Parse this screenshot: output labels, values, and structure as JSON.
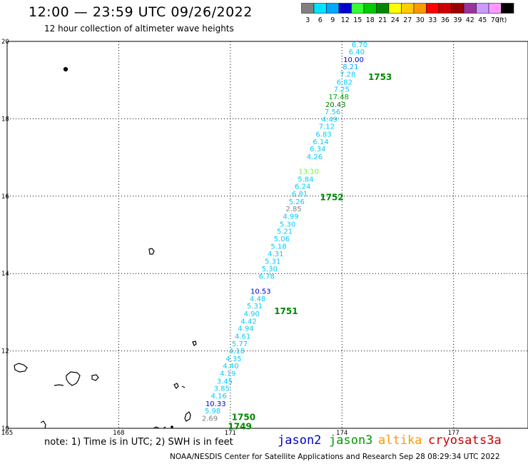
{
  "header": {
    "title": "12:00 — 23:59 UTC 09/26/2022",
    "subtitle": "12 hour collection of altimeter wave heights"
  },
  "colorbar": {
    "unit": "(ft)",
    "bins": [
      {
        "label": "3",
        "color": "#808080"
      },
      {
        "label": "6",
        "color": "#00e5ff"
      },
      {
        "label": "9",
        "color": "#00a8ff"
      },
      {
        "label": "12",
        "color": "#0000cc"
      },
      {
        "label": "15",
        "color": "#33ff33"
      },
      {
        "label": "18",
        "color": "#00cc00"
      },
      {
        "label": "21",
        "color": "#008800"
      },
      {
        "label": "24",
        "color": "#ffff00"
      },
      {
        "label": "27",
        "color": "#ffcc00"
      },
      {
        "label": "30",
        "color": "#ff9900"
      },
      {
        "label": "33",
        "color": "#ff0000"
      },
      {
        "label": "36",
        "color": "#cc0000"
      },
      {
        "label": "39",
        "color": "#990000"
      },
      {
        "label": "42",
        "color": "#993399"
      },
      {
        "label": "45",
        "color": "#cc99ff"
      },
      {
        "label": "70",
        "color": "#ff99ff"
      },
      {
        "label": "",
        "color": "#000000"
      }
    ]
  },
  "map": {
    "lon_range": [
      165,
      179
    ],
    "lat_range": [
      10,
      20
    ],
    "lon_ticks": [
      "165",
      "168",
      "171",
      "174",
      "177"
    ],
    "lat_ticks": [
      "10",
      "12",
      "14",
      "16",
      "18",
      "20"
    ],
    "lon_tick_values": [
      165,
      168,
      171,
      174,
      177
    ],
    "lat_tick_values": [
      10,
      12,
      14,
      16,
      18,
      20
    ],
    "grid_lon_values": [
      168,
      171,
      174,
      177
    ],
    "grid_lat_values": [
      12,
      14,
      16,
      18
    ],
    "track": {
      "satellite": "jason3",
      "times": [
        {
          "label": "1753",
          "lat": 19.1
        },
        {
          "label": "1752",
          "lat": 15.99
        },
        {
          "label": "1751",
          "lat": 13.04
        },
        {
          "label": "1750",
          "lat": 10.3
        },
        {
          "label": "1749",
          "lat": 10.06
        }
      ],
      "observations": [
        {
          "value": "6.70",
          "lat": 19.93,
          "color": "#00ccff"
        },
        {
          "value": "6.40",
          "lat": 19.74,
          "color": "#00ccff"
        },
        {
          "value": "10.00",
          "lat": 19.54,
          "color": "#0000cc"
        },
        {
          "value": "8.21",
          "lat": 19.35,
          "color": "#00a8ff"
        },
        {
          "value": "7.28",
          "lat": 19.16,
          "color": "#00ccff"
        },
        {
          "value": "6.82",
          "lat": 18.96,
          "color": "#00ccff"
        },
        {
          "value": "7.25",
          "lat": 18.77,
          "color": "#00ccff"
        },
        {
          "value": "17.48",
          "lat": 18.58,
          "color": "#00aa00"
        },
        {
          "value": "20.43",
          "lat": 18.38,
          "color": "#007700"
        },
        {
          "value": "7.56",
          "lat": 18.19,
          "color": "#00ccff"
        },
        {
          "value": "4.49",
          "lat": 18.0,
          "color": "#00ccff"
        },
        {
          "value": "7.12",
          "lat": 17.81,
          "color": "#00ccff"
        },
        {
          "value": "6.83",
          "lat": 17.61,
          "color": "#00ccff"
        },
        {
          "value": "6.14",
          "lat": 17.42,
          "color": "#00ccff"
        },
        {
          "value": "6.34",
          "lat": 17.23,
          "color": "#00ccff"
        },
        {
          "value": "4.26",
          "lat": 17.03,
          "color": "#00ccff"
        },
        {
          "value": "13.10",
          "lat": 16.65,
          "color": "#66ff33"
        },
        {
          "value": "5.84",
          "lat": 16.45,
          "color": "#00ccff"
        },
        {
          "value": "6.24",
          "lat": 16.26,
          "color": "#00ccff"
        },
        {
          "value": "6.81",
          "lat": 16.07,
          "color": "#00ccff"
        },
        {
          "value": "5.26",
          "lat": 15.87,
          "color": "#00ccff"
        },
        {
          "value": "2.85",
          "lat": 15.68,
          "color": "#808080"
        },
        {
          "value": "4.99",
          "lat": 15.49,
          "color": "#00ccff"
        },
        {
          "value": "5.30",
          "lat": 15.29,
          "color": "#00ccff"
        },
        {
          "value": "5.21",
          "lat": 15.1,
          "color": "#00ccff"
        },
        {
          "value": "5.06",
          "lat": 14.91,
          "color": "#00ccff"
        },
        {
          "value": "5.18",
          "lat": 14.71,
          "color": "#00ccff"
        },
        {
          "value": "4.31",
          "lat": 14.52,
          "color": "#00ccff"
        },
        {
          "value": "5.31",
          "lat": 14.33,
          "color": "#00ccff"
        },
        {
          "value": "5.30",
          "lat": 14.13,
          "color": "#00ccff"
        },
        {
          "value": "6.78",
          "lat": 13.94,
          "color": "#00ccff"
        },
        {
          "value": "10.53",
          "lat": 13.55,
          "color": "#0000cc"
        },
        {
          "value": "4.48",
          "lat": 13.36,
          "color": "#00ccff"
        },
        {
          "value": "5.31",
          "lat": 13.17,
          "color": "#00ccff"
        },
        {
          "value": "4.90",
          "lat": 12.97,
          "color": "#00ccff"
        },
        {
          "value": "4.42",
          "lat": 12.78,
          "color": "#00ccff"
        },
        {
          "value": "4.94",
          "lat": 12.59,
          "color": "#00ccff"
        },
        {
          "value": "4.61",
          "lat": 12.39,
          "color": "#00ccff"
        },
        {
          "value": "5.77",
          "lat": 12.2,
          "color": "#00ccff"
        },
        {
          "value": "4.18",
          "lat": 12.01,
          "color": "#00ccff"
        },
        {
          "value": "4.35",
          "lat": 11.81,
          "color": "#00ccff"
        },
        {
          "value": "4.40",
          "lat": 11.62,
          "color": "#00ccff"
        },
        {
          "value": "4.19",
          "lat": 11.43,
          "color": "#00ccff"
        },
        {
          "value": "3.45",
          "lat": 11.23,
          "color": "#00ccff"
        },
        {
          "value": "3.85",
          "lat": 11.04,
          "color": "#00ccff"
        },
        {
          "value": "4.16",
          "lat": 10.85,
          "color": "#00ccff"
        },
        {
          "value": "10.33",
          "lat": 10.65,
          "color": "#0000cc"
        },
        {
          "value": "5.98",
          "lat": 10.46,
          "color": "#00ccff"
        },
        {
          "value": "2.69",
          "lat": 10.27,
          "color": "#808080"
        }
      ]
    }
  },
  "note": "note: 1) Time is in UTC; 2) SWH is in feet",
  "satellites": {
    "jason2": "jason2",
    "jason3": "jason3",
    "altika": "altika",
    "cryosat": "cryosat",
    "s3a": "s3a"
  },
  "footer": "NOAA/NESDIS Center for Satellite Applications and Research    Sep 28 08:29:34 UTC 2022"
}
